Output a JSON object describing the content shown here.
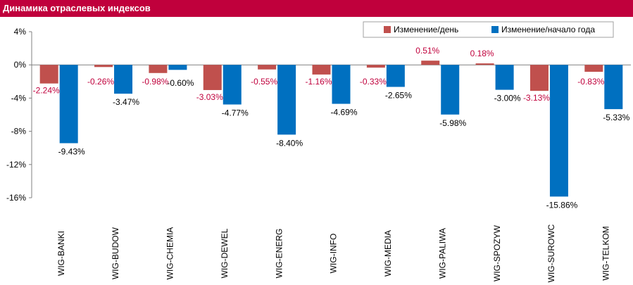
{
  "title": "Динамика отраслевых индексов",
  "colors": {
    "header": "#c0003c",
    "daily": "#c0504d",
    "ytd": "#0070c0",
    "daily_label": "#c0003c",
    "ytd_label": "#000000"
  },
  "chart_data": {
    "type": "bar",
    "title": "Динамика отраслевых индексов",
    "categories": [
      "WIG-BANKI",
      "WIG-BUDOW",
      "WIG-CHEMIA",
      "WIG-DEWEL",
      "WIG-ENERG",
      "WIG-INFO",
      "WIG-MEDIA",
      "WIG-PALIWA",
      "WIG-SPOZYW",
      "WIG-SUROWC",
      "WIG-TELKOM"
    ],
    "series": [
      {
        "name": "Изменение/день",
        "values": [
          -2.24,
          -0.26,
          -0.98,
          -3.03,
          -0.55,
          -1.16,
          -0.33,
          0.51,
          0.18,
          -3.13,
          -0.83
        ],
        "labels": [
          "-2.24%",
          "-0.26%",
          "-0.98%",
          "-3.03%",
          "-0.55%",
          "-1.16%",
          "-0.33%",
          "0.51%",
          "0.18%",
          "-3.13%",
          "-0.83%"
        ]
      },
      {
        "name": "Изменение/начало года",
        "values": [
          -9.43,
          -3.47,
          -0.6,
          -4.77,
          -8.4,
          -4.69,
          -2.65,
          -5.98,
          -3.0,
          -15.86,
          -5.33
        ],
        "labels": [
          "-9.43%",
          "-3.47%",
          "-0.60%",
          "-4.77%",
          "-8.40%",
          "-4.69%",
          "-2.65%",
          "-5.98%",
          "-3.00%",
          "-15.86%",
          "-5.33%"
        ]
      }
    ],
    "y_ticks": [
      "4%",
      "0%",
      "-4%",
      "-8%",
      "-12%",
      "-16%"
    ],
    "y_tick_values": [
      4,
      0,
      -4,
      -8,
      -12,
      -16
    ],
    "ylim": [
      -16,
      4
    ],
    "grid": false,
    "legend_position": "top-right"
  }
}
